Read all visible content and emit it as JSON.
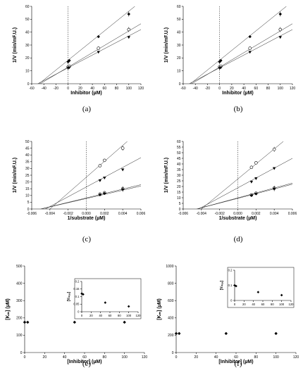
{
  "chart_data": [
    {
      "id": "a",
      "panel_label": "(a)",
      "type": "scatter",
      "xlabel": "Inhibitor (µM)",
      "ylabel": "1/V (min/mF.U.)",
      "xlim": [
        -60,
        120
      ],
      "ylim": [
        0,
        60
      ],
      "xticks": [
        -60,
        -40,
        -20,
        0,
        20,
        40,
        60,
        80,
        100,
        120
      ],
      "xtick_labels": [
        "-60",
        "-40",
        "-20",
        "0",
        "20",
        "40",
        "60",
        "80",
        "100",
        "120"
      ],
      "yticks": [
        0,
        10,
        20,
        30,
        40,
        50,
        60
      ],
      "ytick_labels": [
        "0",
        "10",
        "20",
        "30",
        "40",
        "50",
        "60"
      ],
      "vline_x": 0,
      "legend": "none",
      "series": [
        {
          "marker": "diamond",
          "x": [
            0,
            2,
            50,
            100
          ],
          "y": [
            17,
            18,
            36.5,
            54
          ],
          "fit": [
            [
              -48,
              0
            ],
            [
              110,
              60
            ]
          ]
        },
        {
          "marker": "circle-open",
          "x": [
            0,
            2,
            50,
            100
          ],
          "y": [
            13,
            13.5,
            27.5,
            42
          ],
          "fit": [
            [
              -46,
              0
            ],
            [
              120,
              46.5
            ]
          ]
        },
        {
          "marker": "triangle-down",
          "x": [
            0,
            2,
            50,
            100
          ],
          "y": [
            12,
            12.5,
            24.5,
            36
          ],
          "fit": [
            [
              -50,
              0
            ],
            [
              120,
              42
            ]
          ]
        }
      ]
    },
    {
      "id": "b",
      "panel_label": "(b)",
      "type": "scatter",
      "xlabel": "Inhibitor (µM)",
      "ylabel": "1/V (min/mF.U.)",
      "xlim": [
        -60,
        120
      ],
      "ylim": [
        0,
        60
      ],
      "xticks": [
        -60,
        -40,
        -20,
        0,
        20,
        40,
        60,
        80,
        100,
        120
      ],
      "xtick_labels": [
        "-60",
        "-40",
        "-20",
        "0",
        "20",
        "40",
        "60",
        "80",
        "100",
        "120"
      ],
      "yticks": [
        0,
        10,
        20,
        30,
        40,
        50,
        60
      ],
      "ytick_labels": [
        "0",
        "10",
        "20",
        "30",
        "40",
        "50",
        "60"
      ],
      "vline_x": 0,
      "legend": "none",
      "series": [
        {
          "marker": "diamond",
          "x": [
            0,
            2,
            50,
            100
          ],
          "y": [
            17,
            18,
            36.5,
            54
          ],
          "fit": [
            [
              -48,
              0
            ],
            [
              110,
              60
            ]
          ]
        },
        {
          "marker": "circle-open",
          "x": [
            0,
            2,
            50,
            100
          ],
          "y": [
            13,
            13.5,
            27.5,
            42
          ],
          "fit": [
            [
              -46,
              0
            ],
            [
              120,
              46.5
            ]
          ]
        },
        {
          "marker": "triangle-down",
          "x": [
            0,
            2,
            50,
            100
          ],
          "y": [
            12,
            12.5,
            24.5,
            36
          ],
          "fit": [
            [
              -50,
              0
            ],
            [
              120,
              42
            ]
          ]
        }
      ]
    },
    {
      "id": "c",
      "panel_label": "(c)",
      "type": "scatter",
      "xlabel": "1/substrate (µM)",
      "ylabel": "1/V (min/mF.U.)",
      "xlim": [
        -0.006,
        0.006
      ],
      "ylim": [
        0,
        50
      ],
      "xticks": [
        -0.006,
        -0.004,
        -0.002,
        0,
        0.002,
        0.004,
        0.006
      ],
      "xtick_labels": [
        "-0.006",
        "-0.004",
        "-0.002",
        "0.000",
        "0.002",
        "0.004",
        "0.006"
      ],
      "yticks": [
        0,
        5,
        10,
        15,
        20,
        25,
        30,
        35,
        40,
        45,
        50
      ],
      "ytick_labels": [
        "0",
        "5",
        "10",
        "15",
        "20",
        "25",
        "30",
        "35",
        "40",
        "45",
        "50"
      ],
      "vline_x": 0,
      "legend": "none",
      "series": [
        {
          "marker": "circle-open",
          "x": [
            0.0015,
            0.002,
            0.004
          ],
          "y": [
            32,
            36,
            45
          ],
          "fit": [
            [
              -0.004,
              0
            ],
            [
              0.0045,
              50
            ]
          ]
        },
        {
          "marker": "triangle-down",
          "x": [
            0.0015,
            0.002,
            0.004
          ],
          "y": [
            21,
            23,
            29
          ],
          "fit": [
            [
              -0.0045,
              0
            ],
            [
              0.006,
              38
            ]
          ]
        },
        {
          "marker": "circle-open",
          "x": [
            0.0015,
            0.002,
            0.004
          ],
          "y": [
            11,
            12,
            15
          ],
          "fit": [
            [
              -0.005,
              0
            ],
            [
              0.006,
              18
            ]
          ]
        },
        {
          "marker": "diamond",
          "x": [
            0.0015,
            0.002,
            0.004
          ],
          "y": [
            10.5,
            11.5,
            14.5
          ],
          "fit": [
            [
              -0.005,
              0
            ],
            [
              0.006,
              17
            ]
          ]
        }
      ]
    },
    {
      "id": "d",
      "panel_label": "(d)",
      "type": "scatter",
      "xlabel": "1/substrate (µM)",
      "ylabel": "1/V (min/mF.U.)",
      "xlim": [
        -0.006,
        0.006
      ],
      "ylim": [
        0,
        60
      ],
      "xticks": [
        -0.006,
        -0.004,
        -0.002,
        0,
        0.002,
        0.004,
        0.006
      ],
      "xtick_labels": [
        "-0.006",
        "-0.004",
        "-0.002",
        "0.000",
        "0.002",
        "0.004",
        "0.006"
      ],
      "yticks": [
        0,
        5,
        10,
        15,
        20,
        25,
        30,
        35,
        40,
        45,
        50,
        55,
        60
      ],
      "ytick_labels": [
        "0",
        "5",
        "10",
        "15",
        "20",
        "25",
        "30",
        "35",
        "40",
        "45",
        "50",
        "55",
        "60"
      ],
      "vline_x": 0,
      "legend": "none",
      "series": [
        {
          "marker": "circle-open",
          "x": [
            0.0015,
            0.002,
            0.004
          ],
          "y": [
            37,
            41,
            53
          ],
          "fit": [
            [
              -0.004,
              0
            ],
            [
              0.005,
              60
            ]
          ]
        },
        {
          "marker": "triangle-down",
          "x": [
            0.0015,
            0.002,
            0.004
          ],
          "y": [
            24,
            27,
            36
          ],
          "fit": [
            [
              -0.0043,
              0
            ],
            [
              0.006,
              45
            ]
          ]
        },
        {
          "marker": "circle-open",
          "x": [
            0.0015,
            0.002,
            0.004
          ],
          "y": [
            12.5,
            14,
            18.5
          ],
          "fit": [
            [
              -0.0045,
              0
            ],
            [
              0.006,
              23
            ]
          ]
        },
        {
          "marker": "diamond",
          "x": [
            0.0015,
            0.002,
            0.004
          ],
          "y": [
            12,
            13.5,
            18
          ],
          "fit": [
            [
              -0.0045,
              0
            ],
            [
              0.006,
              22
            ]
          ]
        }
      ]
    },
    {
      "id": "e",
      "panel_label": "(e)",
      "type": "scatter",
      "xlabel": "[Inhibitor] (µM)",
      "ylabel": "[Kₘ] (µM)",
      "xlim": [
        0,
        120
      ],
      "ylim": [
        0,
        500
      ],
      "xticks": [
        0,
        20,
        40,
        60,
        80,
        100,
        120
      ],
      "xtick_labels": [
        "0",
        "20",
        "40",
        "60",
        "80",
        "100",
        "120"
      ],
      "yticks": [
        0,
        100,
        200,
        300,
        400,
        500
      ],
      "ytick_labels": [
        "0",
        "100",
        "200",
        "300",
        "400",
        "500"
      ],
      "legend": "none",
      "series": [
        {
          "marker": "diamond",
          "x": [
            0,
            3,
            50,
            100
          ],
          "y": [
            175,
            175,
            175,
            175
          ]
        }
      ],
      "inset": {
        "ylabel": "[Vₘₐₓ]",
        "xlim": [
          0,
          120
        ],
        "ylim": [
          0,
          0.2
        ],
        "xticks": [
          0,
          20,
          40,
          60,
          80,
          100,
          120
        ],
        "xtick_labels": [
          "0",
          "20",
          "40",
          "60",
          "80",
          "100",
          "120"
        ],
        "yticks": [
          0,
          0.05,
          0.1,
          0.15,
          0.2
        ],
        "ytick_labels": [
          "0",
          "0.05",
          "0.1",
          "0.15",
          "0.2"
        ],
        "series": [
          {
            "marker": "diamond",
            "x": [
              0,
              3,
              50,
              100
            ],
            "y": [
              0.12,
              0.115,
              0.06,
              0.035
            ]
          }
        ]
      }
    },
    {
      "id": "f",
      "panel_label": "(f)",
      "type": "scatter",
      "xlabel": "[Inhibitor] (µM)",
      "ylabel": "[Kₘ] (µM)",
      "xlim": [
        0,
        120
      ],
      "ylim": [
        0,
        1000
      ],
      "xticks": [
        0,
        20,
        40,
        60,
        80,
        100,
        120
      ],
      "xtick_labels": [
        "0",
        "20",
        "40",
        "60",
        "80",
        "100",
        "120"
      ],
      "yticks": [
        0,
        200,
        400,
        600,
        800,
        1000
      ],
      "ytick_labels": [
        "0",
        "200",
        "400",
        "600",
        "800",
        "1000"
      ],
      "legend": "none",
      "series": [
        {
          "marker": "diamond",
          "x": [
            0,
            3,
            50,
            100
          ],
          "y": [
            220,
            220,
            220,
            220
          ]
        }
      ],
      "inset": {
        "ylabel": "[Vₘₐₓ]",
        "xlim": [
          0,
          120
        ],
        "ylim": [
          0,
          0.2
        ],
        "xticks": [
          0,
          20,
          40,
          60,
          80,
          100,
          120
        ],
        "xtick_labels": [
          "0",
          "20",
          "40",
          "60",
          "80",
          "100",
          "120"
        ],
        "yticks": [
          0,
          0.1,
          0.2
        ],
        "ytick_labels": [
          "0",
          "0.1",
          "0.2"
        ],
        "series": [
          {
            "marker": "diamond",
            "x": [
              0,
              3,
              50,
              100
            ],
            "y": [
              0.1,
              0.095,
              0.055,
              0.035
            ]
          }
        ]
      }
    }
  ]
}
